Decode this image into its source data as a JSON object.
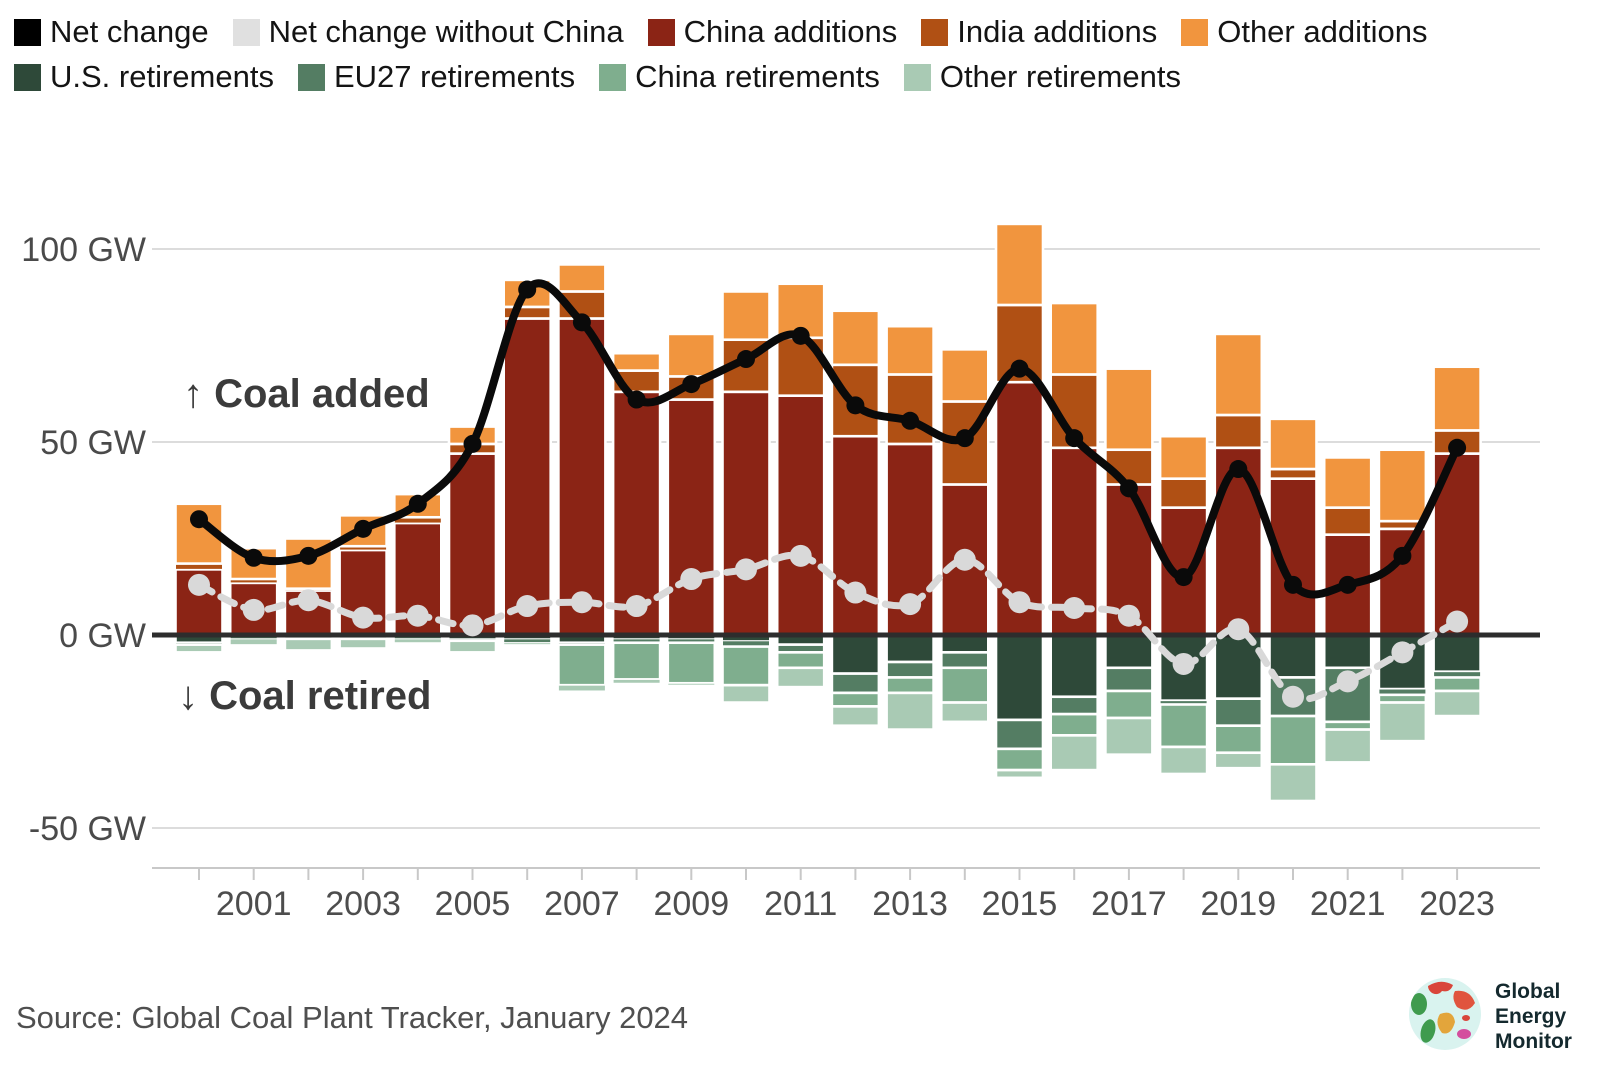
{
  "legend": {
    "rows": [
      [
        {
          "label": "Net change",
          "color": "#000000"
        },
        {
          "label": "Net change without China",
          "color": "#e0e0e0"
        },
        {
          "label": "China additions",
          "color": "#8b2415"
        },
        {
          "label": "India additions",
          "color": "#b05014"
        },
        {
          "label": "Other additions",
          "color": "#f1953e"
        }
      ],
      [
        {
          "label": "U.S. retirements",
          "color": "#2e4939"
        },
        {
          "label": "EU27 retirements",
          "color": "#547d63"
        },
        {
          "label": "China retirements",
          "color": "#7fae8e"
        },
        {
          "label": "Other retirements",
          "color": "#a9cab4"
        }
      ]
    ]
  },
  "annotations": {
    "coal_added": "↑ Coal added",
    "coal_retired": "↓ Coal retired"
  },
  "source": "Source: Global Coal Plant Tracker, January 2024",
  "logo": {
    "line1": "Global",
    "line2": "Energy",
    "line3": "Monitor"
  },
  "chart_data": {
    "type": "bar",
    "subtype": "stacked-bars-above-and-below-zero-with-smoothed-lines",
    "unit": "GW",
    "ylabel": "",
    "xlabel": "",
    "title": "",
    "grid": "horizontal",
    "legend_position": "top-left",
    "ylim": [
      -62,
      114
    ],
    "x": [
      2000,
      2001,
      2002,
      2003,
      2004,
      2005,
      2006,
      2007,
      2008,
      2009,
      2010,
      2011,
      2012,
      2013,
      2014,
      2015,
      2016,
      2017,
      2018,
      2019,
      2020,
      2021,
      2022,
      2023
    ],
    "x_tick_labels": [
      "2001",
      "2003",
      "2005",
      "2007",
      "2009",
      "2011",
      "2013",
      "2015",
      "2017",
      "2019",
      "2021",
      "2023"
    ],
    "y_ticks": [
      {
        "value": 100,
        "label": "100 GW"
      },
      {
        "value": 50,
        "label": "50 GW"
      },
      {
        "value": 0,
        "label": "0 GW"
      },
      {
        "value": -50,
        "label": "-50 GW"
      }
    ],
    "bar_series_additions": [
      {
        "name": "China additions",
        "color": "#8b2415",
        "values": [
          17,
          13.5,
          11.5,
          22,
          29,
          47,
          82,
          82,
          63,
          61,
          63,
          62,
          51.5,
          49.5,
          39,
          65.5,
          48.5,
          39,
          33,
          48.5,
          40.5,
          26,
          27.5,
          47
        ]
      },
      {
        "name": "India additions",
        "color": "#b05014",
        "values": [
          1.5,
          1,
          0.5,
          1,
          1.5,
          2.5,
          3,
          7,
          5.5,
          6,
          13.5,
          15,
          18.5,
          18,
          21.5,
          20,
          19,
          9,
          7.5,
          8.5,
          2.5,
          7,
          2,
          6
        ]
      },
      {
        "name": "Other additions",
        "color": "#f1953e",
        "values": [
          15.5,
          8,
          13,
          8,
          6,
          4.5,
          7,
          7,
          4.5,
          11,
          12.5,
          14,
          14,
          12.5,
          13.5,
          21,
          18.5,
          21,
          11,
          21,
          13,
          13,
          18.5,
          16.5
        ]
      }
    ],
    "bar_series_retirements": [
      {
        "name": "U.S. retirements",
        "color": "#2e4939",
        "values": [
          2,
          0.5,
          1,
          0.5,
          0.5,
          1,
          1,
          2,
          1,
          1,
          1.5,
          2.5,
          10,
          7,
          4.5,
          22,
          16,
          8.5,
          17,
          16.5,
          11,
          8.5,
          14,
          9.5
        ]
      },
      {
        "name": "EU27 retirements",
        "color": "#547d63",
        "values": [
          0.5,
          0.5,
          0,
          0.5,
          0.5,
          0.5,
          1,
          0.5,
          1,
          1,
          1.5,
          2,
          5,
          4,
          4,
          7.5,
          4.5,
          6,
          1,
          7,
          10,
          14,
          1.5,
          1.5
        ]
      },
      {
        "name": "China retirements",
        "color": "#7fae8e",
        "values": [
          0,
          0,
          0,
          0,
          0,
          0,
          0,
          10.5,
          9.5,
          10.5,
          10,
          4,
          3.5,
          4,
          9,
          5.5,
          5.5,
          7,
          11,
          7,
          12.5,
          2,
          2,
          3.5
        ]
      },
      {
        "name": "Other retirements",
        "color": "#a9cab4",
        "values": [
          2,
          1.5,
          3,
          2.5,
          1,
          3,
          0.5,
          1.5,
          1,
          0.5,
          4.5,
          5,
          5,
          9.5,
          5,
          2,
          9,
          9.5,
          7,
          4,
          9.5,
          8.5,
          10,
          6.5
        ]
      }
    ],
    "line_series": [
      {
        "name": "Net change without China",
        "color": "#d9d9d9",
        "style": "dashed",
        "values": [
          13,
          6.5,
          9,
          4.5,
          5,
          2.5,
          7.5,
          8.5,
          7.5,
          14.5,
          17,
          20.5,
          11,
          8,
          19.5,
          8.5,
          7,
          5,
          -7.5,
          1.5,
          -16,
          -12,
          -4.5,
          3.5
        ]
      },
      {
        "name": "Net change",
        "color": "#0a0a0a",
        "style": "solid",
        "values": [
          30,
          20,
          20.5,
          27.5,
          34,
          49.5,
          89.5,
          81,
          61,
          65,
          71.5,
          77.5,
          59.5,
          55.5,
          51,
          69,
          51,
          38,
          15,
          43,
          13,
          13,
          20.5,
          48.5
        ]
      }
    ],
    "style": {
      "grid_color": "#dcdcdc",
      "zero_line_color": "#2d2d2d",
      "axis_color": "#c8c8c8"
    }
  }
}
